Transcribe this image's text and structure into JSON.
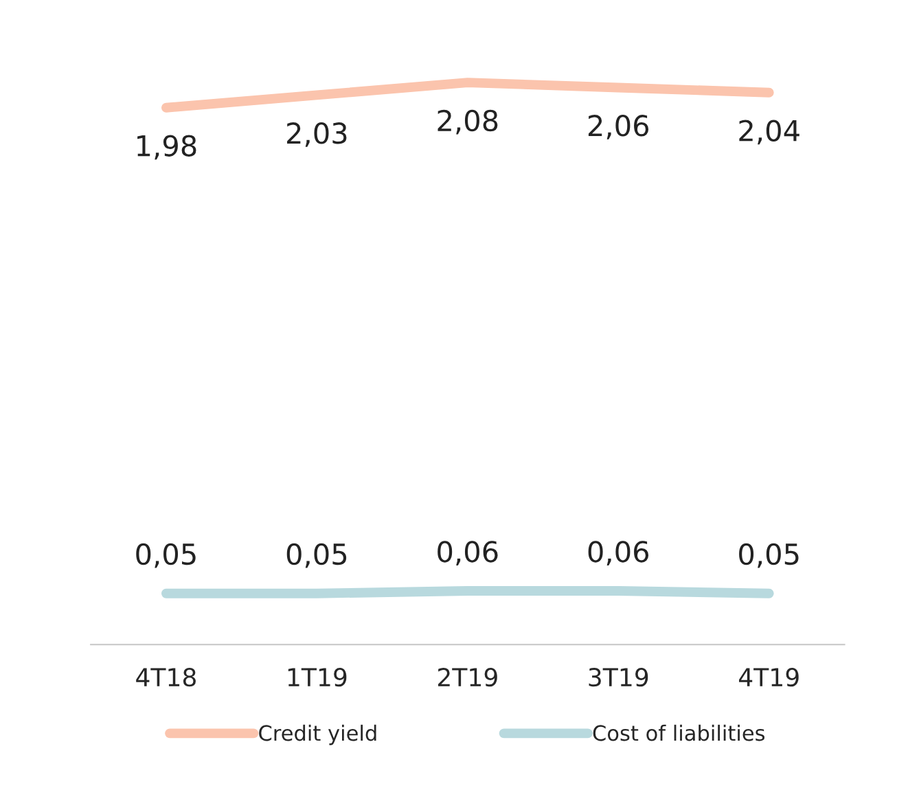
{
  "chart_data": {
    "type": "line",
    "categories": [
      "4T18",
      "1T19",
      "2T19",
      "3T19",
      "4T19"
    ],
    "series": [
      {
        "name": "Credit yield",
        "color": "#fbc4ad",
        "values": [
          1.98,
          2.03,
          2.08,
          2.06,
          2.04
        ],
        "value_labels": [
          "1,98",
          "2,03",
          "2,08",
          "2,06",
          "2,04"
        ]
      },
      {
        "name": "Cost of liabilities",
        "color": "#b8d9de",
        "values": [
          0.05,
          0.05,
          0.06,
          0.06,
          0.05
        ],
        "value_labels": [
          "0,05",
          "0,05",
          "0,06",
          "0,06",
          "0,05"
        ]
      }
    ],
    "grid": false,
    "legend": "bottom",
    "marker": "none",
    "line_style": "solid",
    "tick_labels": "x"
  }
}
